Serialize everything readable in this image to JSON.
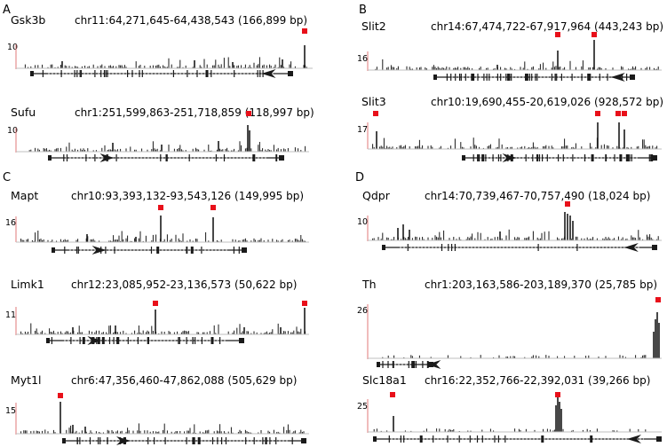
{
  "colors": {
    "peak_marker": "#e8101a",
    "axis_tick": "#e07a7a",
    "baseline": "#bfbfbf",
    "signal": "#1a1a1a",
    "gene_model": "#1a1a1a"
  },
  "panels": [
    {
      "letter": "A",
      "tracks": [
        {
          "gene": "Gsk3b",
          "coords": "chr11:64,271,645-64,438,543 (166,899 bp)",
          "ymax": "10",
          "strand": "-"
        },
        {
          "gene": "Sufu",
          "coords": "chr1:251,599,863-251,718,859 (118,997 bp)",
          "ymax": "10",
          "strand": "+"
        }
      ]
    },
    {
      "letter": "B",
      "tracks": [
        {
          "gene": "Slit2",
          "coords": "chr14:67,474,722-67,917,964 (443,243 bp)",
          "ymax": "16",
          "strand": "-"
        },
        {
          "gene": "Slit3",
          "coords": "chr10:19,690,455-20,619,026 (928,572 bp)",
          "ymax": "17",
          "strand": "+"
        }
      ]
    },
    {
      "letter": "C",
      "tracks": [
        {
          "gene": "Mapt",
          "coords": "chr10:93,393,132-93,543,126 (149,995 bp)",
          "ymax": "16",
          "strand": "+"
        },
        {
          "gene": "Limk1",
          "coords": "chr12:23,085,952-23,136,573 (50,622 bp)",
          "ymax": "11",
          "strand": "+"
        },
        {
          "gene": "Myt1l",
          "coords": "chr6:47,356,460-47,862,088 (505,629 bp)",
          "ymax": "15",
          "strand": "+"
        }
      ]
    },
    {
      "letter": "D",
      "tracks": [
        {
          "gene": "Qdpr",
          "coords": "chr14:70,739,467-70,757,490 (18,024 bp)",
          "ymax": "10",
          "strand": "-"
        },
        {
          "gene": "Th",
          "coords": "chr1:203,163,586-203,189,370 (25,785 bp)",
          "ymax": "26",
          "strand": "-"
        },
        {
          "gene": "Slc18a1",
          "coords": "chr16:22,352,766-22,392,031 (39,266 bp)",
          "ymax": "25",
          "strand": "-"
        }
      ]
    }
  ]
}
